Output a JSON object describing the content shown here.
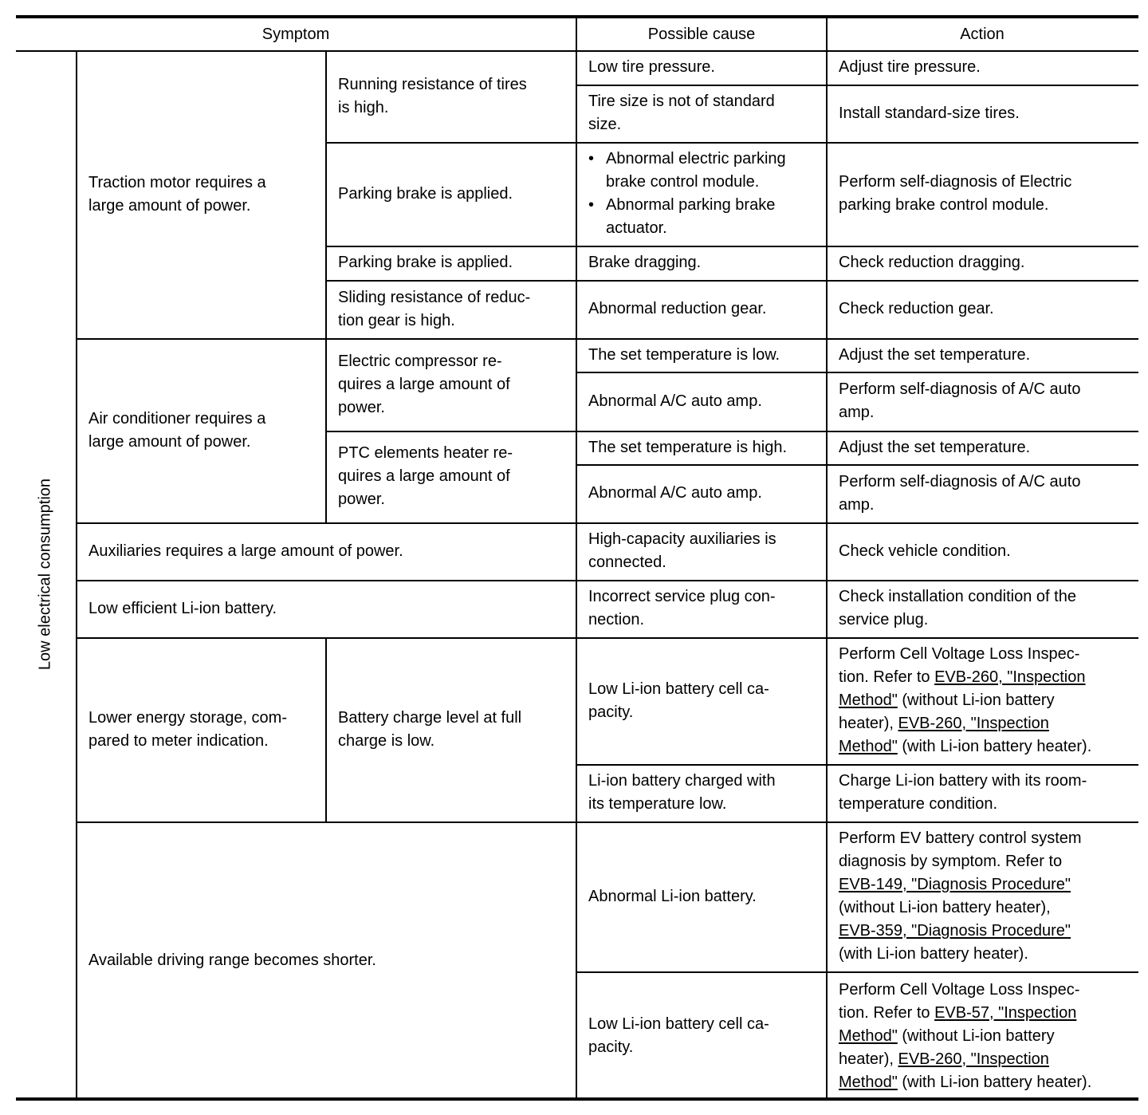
{
  "header": {
    "symptom": "Symptom",
    "cause": "Possible cause",
    "action": "Action"
  },
  "category": "Low electrical consumption",
  "symptoms": {
    "traction": "Traction motor requires a\nlarge amount of power.",
    "air": "Air conditioner requires a\nlarge amount of power.",
    "aux": "Auxiliaries requires a large amount of power.",
    "li_eff": "Low efficient Li-ion battery.",
    "lower_energy": "Lower energy storage, com-\npared to meter indication.",
    "range": "Available driving range becomes shorter."
  },
  "sub": {
    "running": "Running resistance of tires\nis high.",
    "parking1": "Parking brake is applied.",
    "parking2": "Parking brake is applied.",
    "sliding": "Sliding resistance of reduc-\ntion gear is high.",
    "compressor": "Electric compressor re-\nquires a large amount of\npower.",
    "ptc": "PTC elements heater re-\nquires a large amount of\npower.",
    "charge": "Battery charge level at full\ncharge is low."
  },
  "causes": [
    "Low tire pressure.",
    "Tire size is not of standard\nsize.",
    [
      "Abnormal electric parking\nbrake control module.",
      "Abnormal parking brake\nactuator."
    ],
    "Brake dragging.",
    "Abnormal reduction gear.",
    "The set temperature is low.",
    "Abnormal A/C auto amp.",
    "The set temperature is high.",
    "Abnormal A/C auto amp.",
    "High-capacity auxiliaries is\nconnected.",
    "Incorrect service plug con-\nnection.",
    "Low Li-ion battery cell ca-\npacity.",
    "Li-ion battery charged with\nits temperature low.",
    "Abnormal Li-ion battery.",
    "Low Li-ion battery cell ca-\npacity."
  ],
  "actions": [
    "Adjust tire pressure.",
    "Install standard-size tires.",
    "Perform self-diagnosis of Electric\nparking brake control module.",
    "Check reduction dragging.",
    "Check reduction gear.",
    "Adjust the set temperature.",
    "Perform self-diagnosis of A/C auto\namp.",
    "Adjust the set temperature.",
    "Perform self-diagnosis of A/C auto\namp.",
    "Check vehicle condition.",
    "Check installation condition of the\nservice plug.",
    {
      "t1": "Perform Cell Voltage Loss Inspec-\ntion. Refer to ",
      "l1": "EVB-260, \"Inspection\nMethod\"",
      "t2": " (without Li-ion battery\nheater), ",
      "l2": "EVB-260, \"Inspection\nMethod\"",
      "t3": " (with Li-ion battery heater)."
    },
    "Charge Li-ion battery with its room-\ntemperature condition.",
    {
      "t1": "Perform EV battery control system\ndiagnosis by symptom. Refer to\n",
      "l1": "EVB-149, \"Diagnosis Procedure\"",
      "t2": "\n(without Li-ion battery heater),\n",
      "l2": "EVB-359, \"Diagnosis Procedure\"",
      "t3": "\n(with Li-ion battery heater)."
    },
    {
      "t1": "Perform Cell Voltage Loss Inspec-\ntion. Refer to ",
      "l1": "EVB-57, \"Inspection\nMethod\"",
      "t2": " (without Li-ion battery\nheater), ",
      "l2": "EVB-260, \"Inspection\nMethod\"",
      "t3": " (with Li-ion battery heater)."
    }
  ]
}
